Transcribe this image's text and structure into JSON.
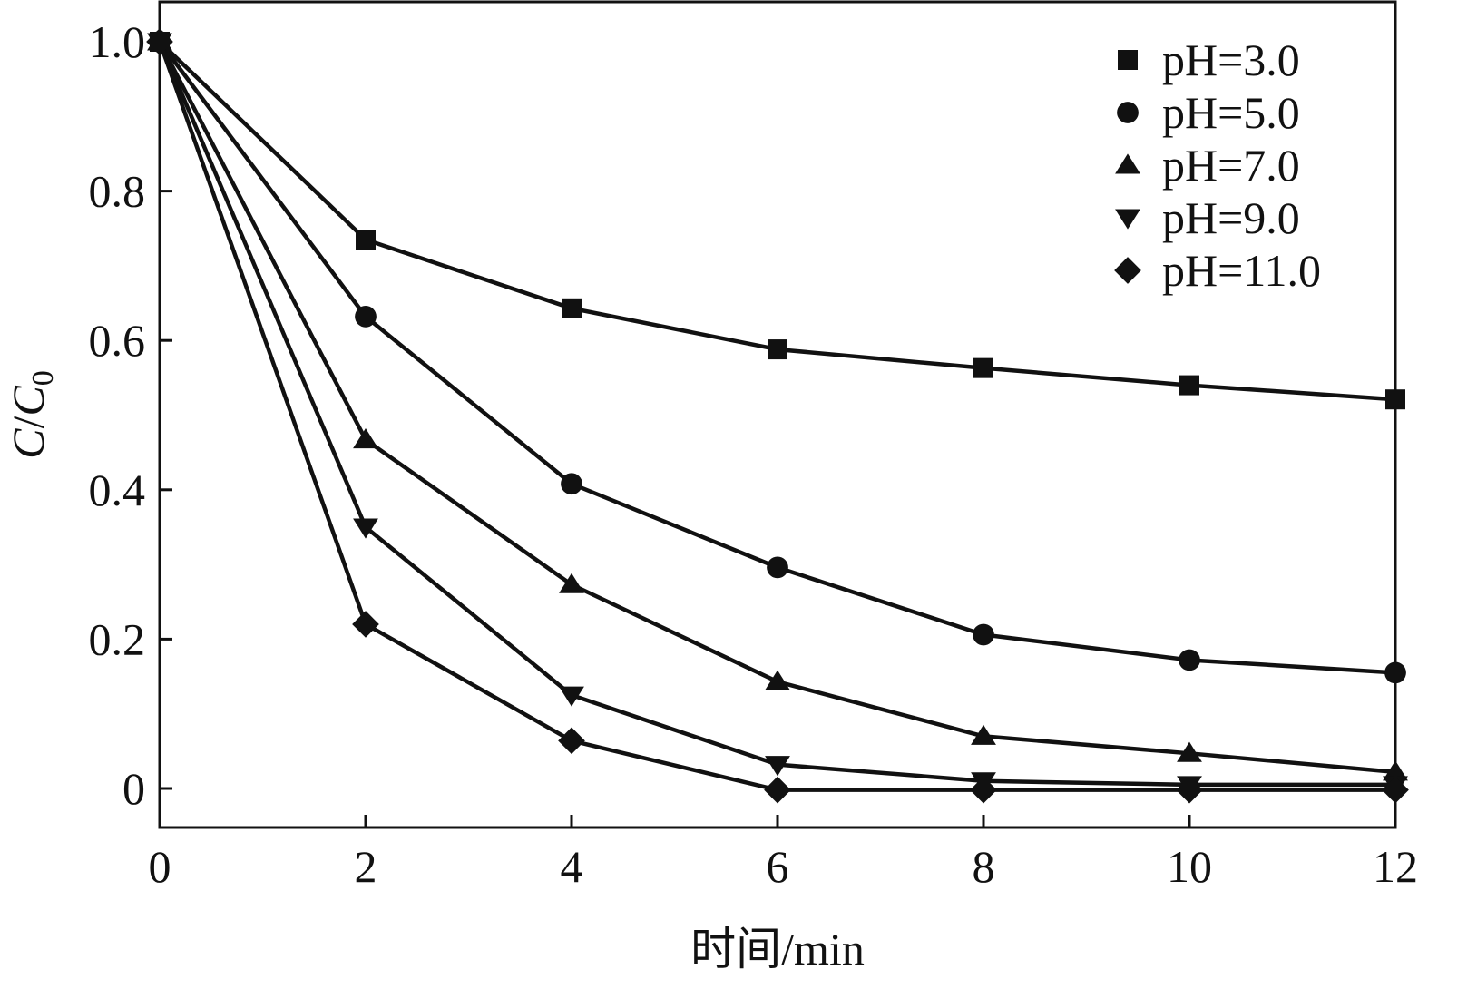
{
  "chart_data": {
    "type": "line",
    "xlabel": "时间/min",
    "ylabel_main": "C",
    "ylabel_sep": "/",
    "ylabel_denom": "C",
    "ylabel_sub": "0",
    "xlim": [
      0,
      12
    ],
    "ylim": [
      -0.05,
      1.05
    ],
    "x_ticks": [
      0,
      2,
      4,
      6,
      8,
      10,
      12
    ],
    "x_tick_labels": [
      "0",
      "2",
      "4",
      "6",
      "8",
      "10",
      "12"
    ],
    "y_ticks": [
      0,
      0.2,
      0.4,
      0.6,
      0.8,
      1.0
    ],
    "y_tick_labels": [
      "0",
      "0.2",
      "0.4",
      "0.6",
      "0.8",
      "1.0"
    ],
    "grid": false,
    "legend_position": "top-right",
    "line_color": "#111111",
    "x": [
      0,
      2,
      4,
      6,
      8,
      10,
      12
    ],
    "series": [
      {
        "name": "pH=3.0",
        "marker": "square",
        "values": [
          1.0,
          0.735,
          0.643,
          0.588,
          0.563,
          0.54,
          0.521
        ]
      },
      {
        "name": "pH=5.0",
        "marker": "circle",
        "values": [
          1.0,
          0.632,
          0.408,
          0.296,
          0.206,
          0.172,
          0.155
        ]
      },
      {
        "name": "pH=7.0",
        "marker": "triangle-up",
        "values": [
          1.0,
          0.467,
          0.273,
          0.143,
          0.07,
          0.047,
          0.022
        ]
      },
      {
        "name": "pH=9.0",
        "marker": "triangle-down",
        "values": [
          1.0,
          0.35,
          0.125,
          0.032,
          0.01,
          0.005,
          0.005
        ]
      },
      {
        "name": "pH=11.0",
        "marker": "diamond",
        "values": [
          1.0,
          0.22,
          0.064,
          -0.002,
          -0.002,
          -0.002,
          -0.002
        ]
      }
    ]
  }
}
